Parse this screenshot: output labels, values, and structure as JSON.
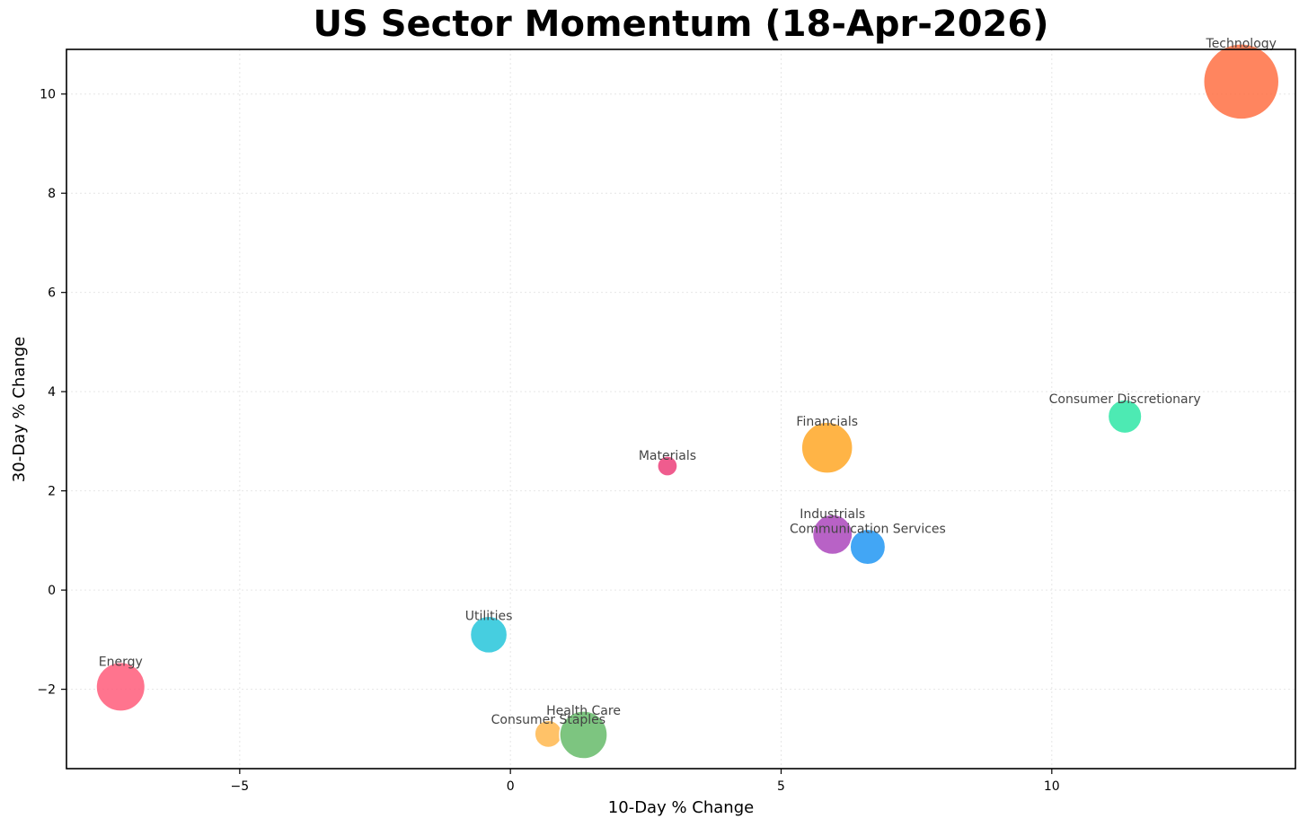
{
  "chart_data": {
    "type": "scatter",
    "title": "US Sector Momentum (18-Apr-2026)",
    "xlabel": "10-Day % Change",
    "ylabel": "30-Day % Change",
    "xlim": [
      -8.2,
      14.5
    ],
    "ylim": [
      -3.6,
      10.9
    ],
    "xticks": [
      -5,
      0,
      5,
      10
    ],
    "yticks": [
      -2,
      0,
      2,
      4,
      6,
      8,
      10
    ],
    "grid": true,
    "points": [
      {
        "label": "Technology",
        "x": 13.5,
        "y": 10.25,
        "size": 1.0,
        "color": "#ff7043"
      },
      {
        "label": "Consumer Discretionary",
        "x": 11.35,
        "y": 3.5,
        "size": 0.2,
        "color": "#2ee6a6"
      },
      {
        "label": "Financials",
        "x": 5.85,
        "y": 2.87,
        "size": 0.46,
        "color": "#ffa726"
      },
      {
        "label": "Materials",
        "x": 2.9,
        "y": 2.5,
        "size": 0.07,
        "color": "#ec407a"
      },
      {
        "label": "Industrials",
        "x": 5.95,
        "y": 1.12,
        "size": 0.28,
        "color": "#ab47bc"
      },
      {
        "label": "Communication Services",
        "x": 6.6,
        "y": 0.87,
        "size": 0.22,
        "color": "#2196f3"
      },
      {
        "label": "Utilities",
        "x": -0.4,
        "y": -0.9,
        "size": 0.24,
        "color": "#26c6da"
      },
      {
        "label": "Energy",
        "x": -7.2,
        "y": -1.95,
        "size": 0.42,
        "color": "#ff5c7a"
      },
      {
        "label": "Consumer Staples",
        "x": 0.7,
        "y": -2.9,
        "size": 0.13,
        "color": "#ffb74d"
      },
      {
        "label": "Health Care",
        "x": 1.35,
        "y": -2.92,
        "size": 0.4,
        "color": "#66bb6a"
      }
    ]
  }
}
